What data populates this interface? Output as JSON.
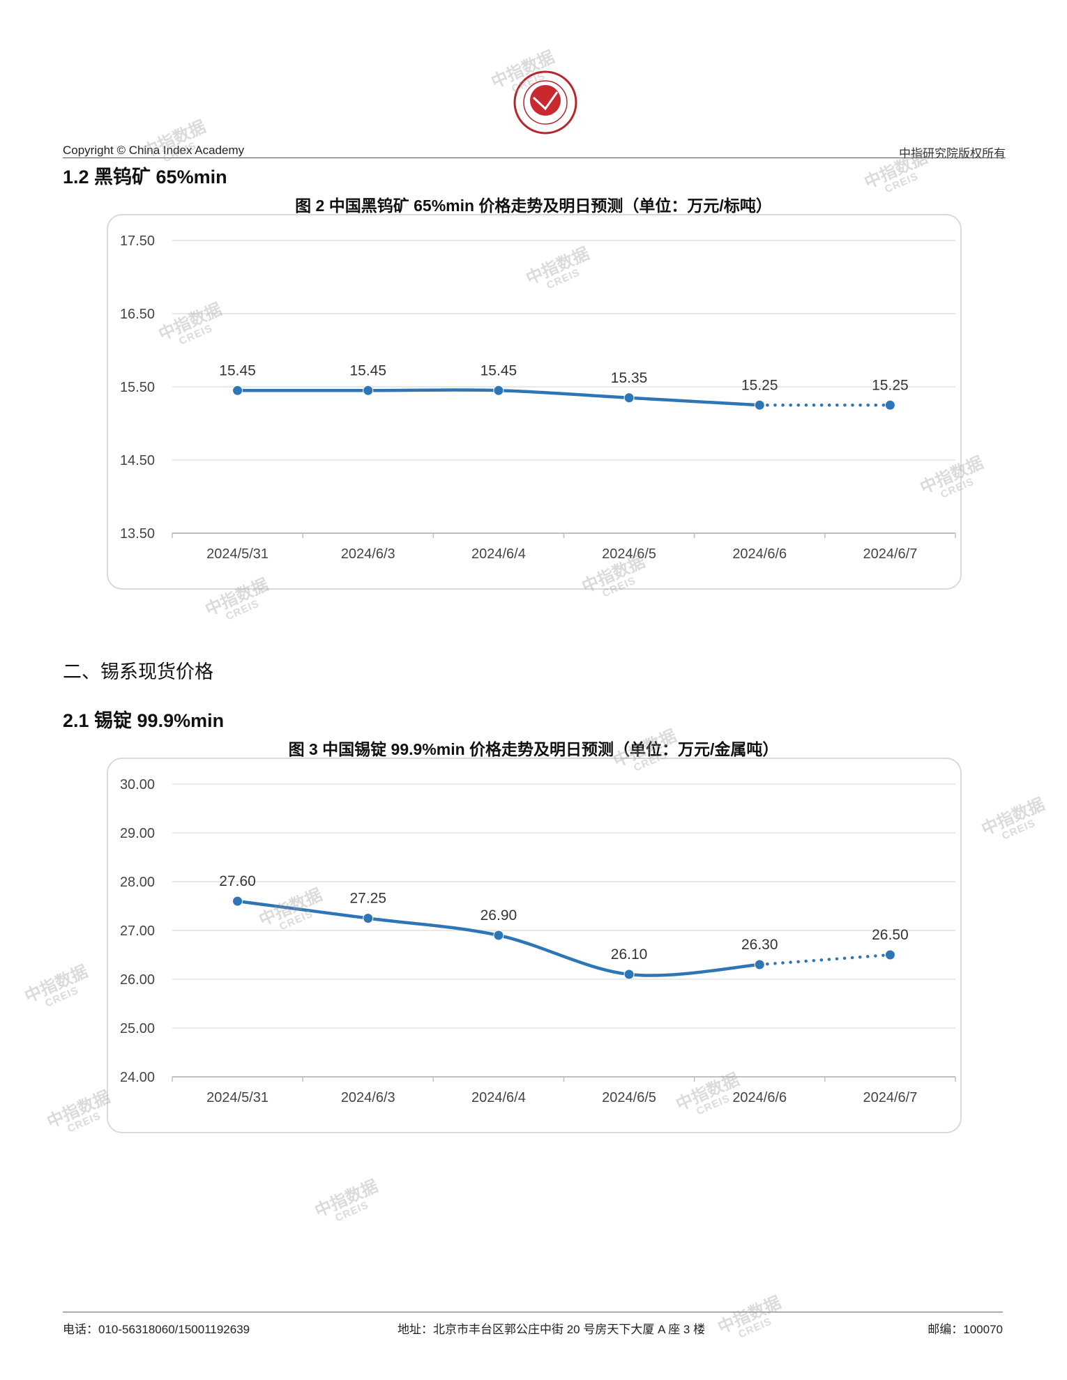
{
  "header": {
    "copyright": "Copyright © China Index Academy",
    "rights": "中指研究院版权所有",
    "logo_text": "中指"
  },
  "section_1_2": {
    "title": "1.2 黑钨矿 65%min"
  },
  "figure2": {
    "title": "图 2 中国黑钨矿 65%min 价格走势及明日预测（单位：万元/标吨）"
  },
  "section_2": {
    "title": "二、锡系现货价格"
  },
  "section_2_1": {
    "title": "2.1 锡锭 99.9%min"
  },
  "figure3": {
    "title": "图 3 中国锡锭 99.9%min 价格走势及明日预测（单位：万元/金属吨）"
  },
  "watermark": {
    "line1": "中指数据",
    "line2": "CREIS"
  },
  "chart_data": [
    {
      "type": "line",
      "title": "图 2 中国黑钨矿 65%min 价格走势及明日预测（单位：万元/标吨）",
      "categories": [
        "2024/5/31",
        "2024/6/3",
        "2024/6/4",
        "2024/6/5",
        "2024/6/6",
        "2024/6/7"
      ],
      "values": [
        15.45,
        15.45,
        15.45,
        15.35,
        15.25,
        15.25
      ],
      "labels": [
        "15.45",
        "15.45",
        "15.45",
        "15.35",
        "15.25",
        "15.25"
      ],
      "forecast_from_index": 4,
      "yticks": [
        "17.50",
        "16.50",
        "15.50",
        "14.50",
        "13.50"
      ],
      "ylim": [
        13.5,
        17.5
      ],
      "grid": true,
      "line_color": "#2E75B6"
    },
    {
      "type": "line",
      "title": "图 3 中国锡锭 99.9%min 价格走势及明日预测（单位：万元/金属吨）",
      "categories": [
        "2024/5/31",
        "2024/6/3",
        "2024/6/4",
        "2024/6/5",
        "2024/6/6",
        "2024/6/7"
      ],
      "values": [
        27.6,
        27.25,
        26.9,
        26.1,
        26.3,
        26.5
      ],
      "labels": [
        "27.60",
        "27.25",
        "26.90",
        "26.10",
        "26.30",
        "26.50"
      ],
      "forecast_from_index": 4,
      "yticks": [
        "30.00",
        "29.00",
        "28.00",
        "27.00",
        "26.00",
        "25.00",
        "24.00"
      ],
      "ylim": [
        24,
        30
      ],
      "grid": true,
      "line_color": "#2E75B6"
    }
  ],
  "footer": {
    "phone": "电话：010-56318060/15001192639",
    "address": "地址：北京市丰台区郭公庄中街 20 号房天下大厦 A 座 3 楼",
    "postcode": "邮编：100070"
  }
}
